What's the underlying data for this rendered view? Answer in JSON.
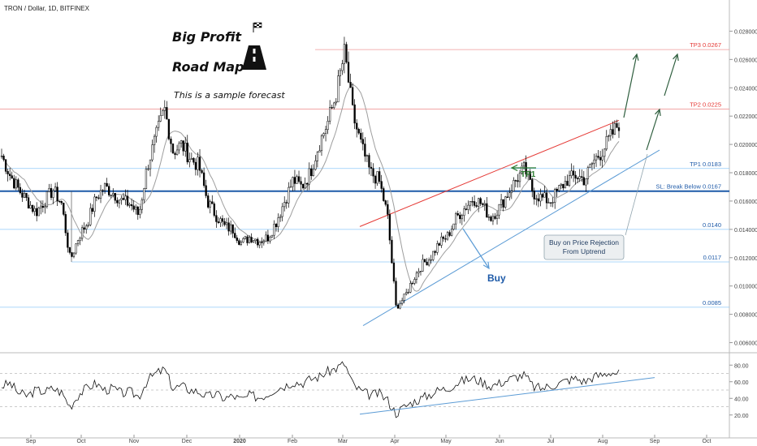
{
  "header": {
    "symbol_label": "TRON / Dollar, 1D, BITFINEX"
  },
  "annotations": {
    "title_line1": "Big Profit",
    "title_line2": "Road Map",
    "subtitle": "This is a sample forecast",
    "buy_label": "Buy",
    "tp1_marker": "TP1",
    "callout_line1": "Buy on Price Rejection",
    "callout_line2": "From Uptrend",
    "flag_icon": "checkered-flag-icon",
    "road_icon": "road-icon"
  },
  "colors": {
    "background": "#ffffff",
    "candle": "#000000",
    "ma": "#9e9e9e",
    "resistance_trend": "#e53935",
    "support_trend": "#5b9bd5",
    "level_red": "#ef9a9a",
    "level_blue": "#90caf9",
    "stop_loss": "#1e5aa8",
    "tp1_arrow": "#2e7d32",
    "target_arrows": "#2e5e3e",
    "price_label_red": "#e53935",
    "price_label_blue": "#1e5aa8"
  },
  "chart_data": {
    "type": "candlestick",
    "x_ticks": [
      "Sep",
      "Oct",
      "Nov",
      "Dec",
      "2020",
      "Feb",
      "Mar",
      "Apr",
      "May",
      "Jun",
      "Jul",
      "Aug",
      "Sep",
      "Oct"
    ],
    "y_ticks": [
      "0.028000",
      "0.026000",
      "0.024000",
      "0.022000",
      "0.020000",
      "0.018000",
      "0.016000",
      "0.014000",
      "0.012000",
      "0.010000",
      "0.008000",
      "0.006000"
    ],
    "ylim": [
      0.0054,
      0.0302
    ],
    "levels": [
      {
        "label": "TP3 0.0267",
        "value": 0.0267,
        "style": "red-thin"
      },
      {
        "label": "TP2 0.0225",
        "value": 0.0225,
        "style": "red-thin"
      },
      {
        "label": "TP1 0.0183",
        "value": 0.0183,
        "style": "blue-thin"
      },
      {
        "label": "SL: Break  Below 0.0167",
        "value": 0.0167,
        "style": "blue-thick"
      },
      {
        "label": "0.0140",
        "value": 0.014,
        "style": "blue-thin"
      },
      {
        "label": "0.0117",
        "value": 0.0117,
        "style": "blue-thin"
      },
      {
        "label": "0.0085",
        "value": 0.0085,
        "style": "blue-thin"
      }
    ],
    "price_path": [
      [
        0,
        0.0192
      ],
      [
        1,
        0.0178
      ],
      [
        2,
        0.0168
      ],
      [
        3,
        0.016
      ],
      [
        4,
        0.0152
      ],
      [
        5,
        0.016
      ],
      [
        6,
        0.0168
      ],
      [
        7,
        0.0158
      ],
      [
        8,
        0.0118
      ],
      [
        9,
        0.0135
      ],
      [
        10,
        0.0145
      ],
      [
        11,
        0.0162
      ],
      [
        12,
        0.017
      ],
      [
        13,
        0.0166
      ],
      [
        14,
        0.016
      ],
      [
        15,
        0.0158
      ],
      [
        16,
        0.015
      ],
      [
        17,
        0.0185
      ],
      [
        18,
        0.0205
      ],
      [
        19,
        0.0225
      ],
      [
        20,
        0.0195
      ],
      [
        21,
        0.02
      ],
      [
        22,
        0.019
      ],
      [
        23,
        0.0185
      ],
      [
        24,
        0.016
      ],
      [
        25,
        0.015
      ],
      [
        26,
        0.0142
      ],
      [
        27,
        0.014
      ],
      [
        28,
        0.013
      ],
      [
        29,
        0.0135
      ],
      [
        30,
        0.0132
      ],
      [
        31,
        0.0134
      ],
      [
        32,
        0.0145
      ],
      [
        33,
        0.016
      ],
      [
        34,
        0.0175
      ],
      [
        35,
        0.017
      ],
      [
        36,
        0.018
      ],
      [
        37,
        0.02
      ],
      [
        38,
        0.0215
      ],
      [
        39,
        0.0235
      ],
      [
        40,
        0.0265
      ],
      [
        41,
        0.022
      ],
      [
        42,
        0.0198
      ],
      [
        43,
        0.018
      ],
      [
        44,
        0.0175
      ],
      [
        45,
        0.015
      ],
      [
        46,
        0.0085
      ],
      [
        47,
        0.0092
      ],
      [
        48,
        0.0105
      ],
      [
        49,
        0.0115
      ],
      [
        50,
        0.012
      ],
      [
        51,
        0.013
      ],
      [
        52,
        0.0135
      ],
      [
        53,
        0.0148
      ],
      [
        54,
        0.0155
      ],
      [
        55,
        0.0162
      ],
      [
        56,
        0.0158
      ],
      [
        57,
        0.0148
      ],
      [
        58,
        0.0155
      ],
      [
        59,
        0.0165
      ],
      [
        60,
        0.0175
      ],
      [
        61,
        0.0183
      ],
      [
        62,
        0.0166
      ],
      [
        63,
        0.0162
      ],
      [
        64,
        0.016
      ],
      [
        65,
        0.0168
      ],
      [
        66,
        0.0175
      ],
      [
        67,
        0.0178
      ],
      [
        68,
        0.0175
      ],
      [
        69,
        0.0188
      ],
      [
        70,
        0.0195
      ],
      [
        71,
        0.0205
      ],
      [
        72,
        0.0215
      ]
    ],
    "rsi": {
      "y_ticks": [
        "80.00",
        "60.00",
        "40.00",
        "20.00"
      ],
      "ylim": [
        10,
        90
      ],
      "levels": [
        70,
        50,
        30
      ],
      "series": [
        55,
        58,
        46,
        43,
        50,
        48,
        52,
        47,
        30,
        45,
        53,
        58,
        50,
        52,
        46,
        48,
        42,
        62,
        70,
        75,
        52,
        55,
        50,
        48,
        42,
        45,
        40,
        43,
        38,
        44,
        41,
        45,
        52,
        55,
        60,
        58,
        63,
        66,
        72,
        76,
        82,
        56,
        48,
        44,
        46,
        38,
        22,
        30,
        36,
        40,
        45,
        50,
        52,
        58,
        62,
        64,
        60,
        55,
        58,
        62,
        66,
        68,
        54,
        52,
        55,
        58,
        62,
        64,
        60,
        66,
        68,
        72,
        70
      ]
    }
  }
}
